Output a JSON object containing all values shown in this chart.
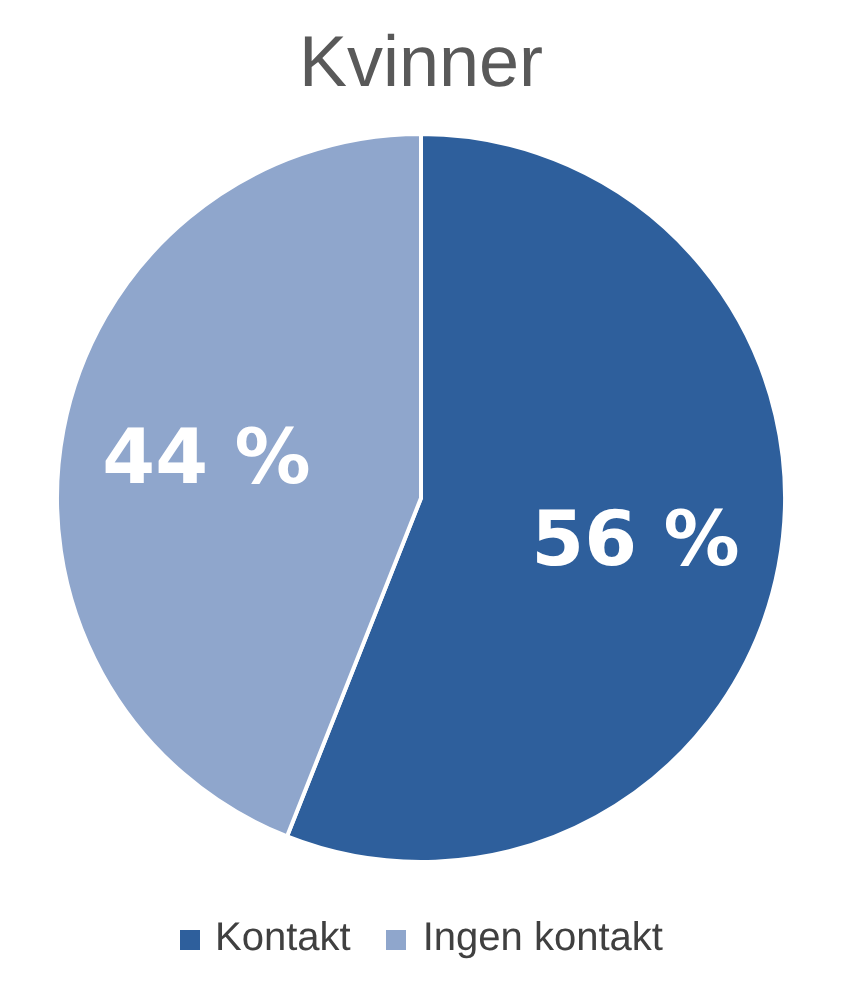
{
  "chart_data": {
    "type": "pie",
    "title": "Kvinner",
    "categories": [
      "Kontakt",
      "Ingen kontakt"
    ],
    "values": [
      56,
      44
    ],
    "colors": [
      "#2e5f9c",
      "#8fa6cc"
    ],
    "value_labels": [
      "56 %",
      "44 %"
    ],
    "legend": "bottom"
  }
}
